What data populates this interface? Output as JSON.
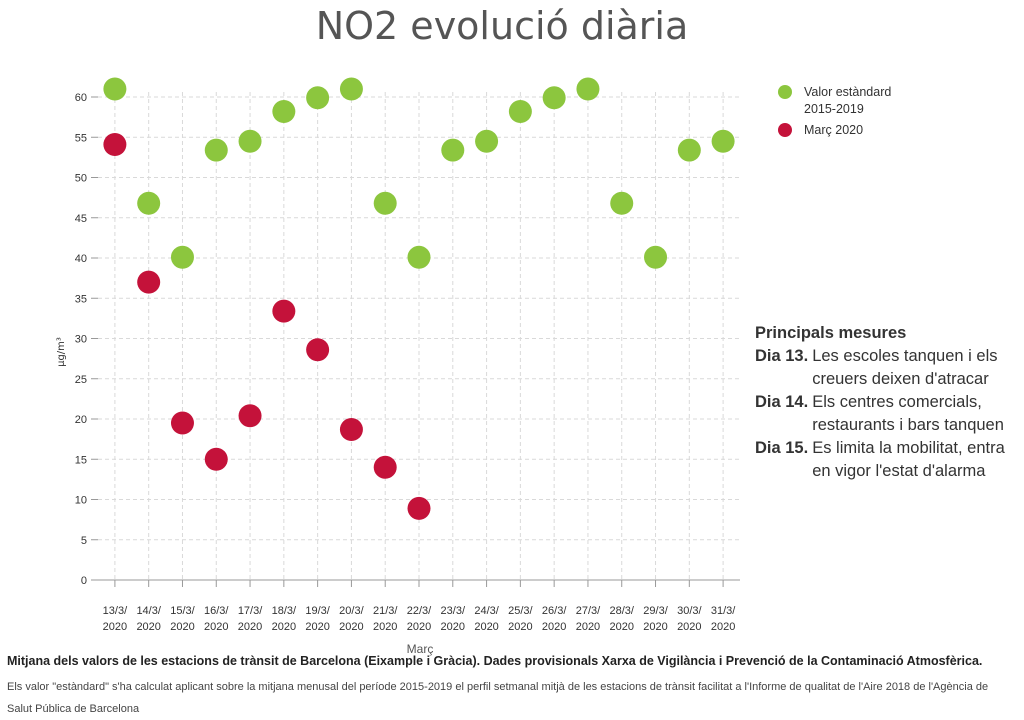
{
  "title": "NO2 evolució diària",
  "legend": {
    "items": [
      {
        "label": "Valor estàndard 2015-2019",
        "color": "#8cc63e"
      },
      {
        "label": "Març 2020",
        "color": "#c4123a"
      }
    ]
  },
  "measures": {
    "heading": "Principals mesures",
    "items": [
      {
        "day": "Dia 13.",
        "text": "Les escoles tanquen i els creuers deixen d'atracar"
      },
      {
        "day": "Dia 14.",
        "text": "Els centres comercials, restaurants i bars tanquen"
      },
      {
        "day": "Dia 15.",
        "text": "Es limita la mobilitat, entra en vigor l'estat d'alarma"
      }
    ]
  },
  "footer": {
    "bold": "Mitjana dels valors de les estacions de trànsit de Barcelona (Eixample i Gràcia). Dades provisionals Xarxa de Vigilància i Prevenció de la Contaminació Atmosfèrica.",
    "small": "Els valor \"estàndard\" s'ha calculat aplicant sobre la mitjana menusal del període 2015-2019 el perfil setmanal mitjà de les estacions de trànsit facilitat a l'Informe de qualitat de l'Aire 2018 de l'Agència de Salut Pública de Barcelona"
  },
  "chart_data": {
    "type": "scatter",
    "xlabel": "Març",
    "ylabel": "μg/m³",
    "ylim": [
      0,
      60
    ],
    "yticks": [
      0,
      5,
      10,
      15,
      20,
      25,
      30,
      35,
      40,
      45,
      50,
      55,
      60
    ],
    "grid": true,
    "legend_position": "top-right",
    "categories": [
      [
        "13/3/",
        "2020"
      ],
      [
        "14/3/",
        "2020"
      ],
      [
        "15/3/",
        "2020"
      ],
      [
        "16/3/",
        "2020"
      ],
      [
        "17/3/",
        "2020"
      ],
      [
        "18/3/",
        "2020"
      ],
      [
        "19/3/",
        "2020"
      ],
      [
        "20/3/",
        "2020"
      ],
      [
        "21/3/",
        "2020"
      ],
      [
        "22/3/",
        "2020"
      ],
      [
        "23/3/",
        "2020"
      ],
      [
        "24/3/",
        "2020"
      ],
      [
        "25/3/",
        "2020"
      ],
      [
        "26/3/",
        "2020"
      ],
      [
        "27/3/",
        "2020"
      ],
      [
        "28/3/",
        "2020"
      ],
      [
        "29/3/",
        "2020"
      ],
      [
        "30/3/",
        "2020"
      ],
      [
        "31/3/",
        "2020"
      ]
    ],
    "series": [
      {
        "name": "Valor estàndard 2015-2019",
        "color": "#8cc63e",
        "values": [
          61,
          46.8,
          40.1,
          53.4,
          54.5,
          58.2,
          59.9,
          61,
          46.8,
          40.1,
          53.4,
          54.5,
          58.2,
          59.9,
          61,
          46.8,
          40.1,
          53.4,
          54.5
        ]
      },
      {
        "name": "Març 2020",
        "color": "#c4123a",
        "values": [
          54.1,
          37,
          19.5,
          15,
          20.4,
          33.4,
          28.6,
          18.7,
          14,
          8.9,
          null,
          null,
          null,
          null,
          null,
          null,
          null,
          null,
          null
        ]
      }
    ]
  }
}
